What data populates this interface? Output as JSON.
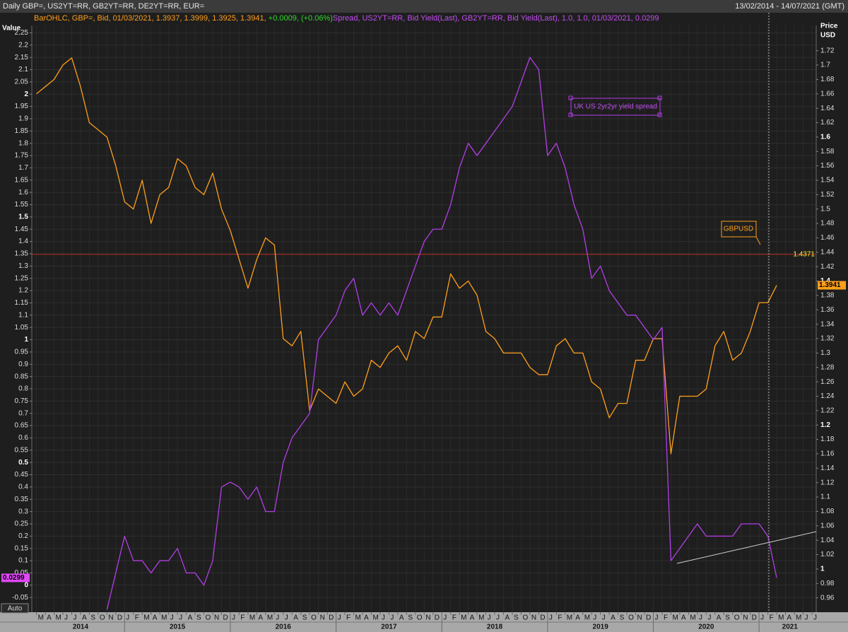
{
  "chart_data": {
    "type": "line",
    "header": "Daily GBP=, US2YT=RR, GB2YT=RR, DE2YT=RR, EUR=",
    "date_range": "13/02/2014 - 14/07/2021 (GMT)",
    "legend_text": [
      "BarOHLC, GBP=, Bid, 01/03/2021, 1.3937, 1.3999, 1.3925, 1.3941, ",
      "+0.0009, (+0.06%)",
      "Spread, US2YT=RR, Bid Yield(Last), GB2YT=RR, Bid Yield(Last),  1.0, 1.0, 01/03/2021, 0.0299"
    ],
    "legend_colors": [
      "#ff9f1c",
      "#2bd92b",
      "#c14ef0"
    ],
    "y_label": "Value",
    "y2_label": [
      "Price",
      "USD"
    ],
    "auto_button": "Auto",
    "grid": true,
    "ylim": [
      -0.11,
      2.28
    ],
    "yticks": [
      2.25,
      2.2,
      2.15,
      2.1,
      2.05,
      2,
      1.95,
      1.9,
      1.85,
      1.8,
      1.75,
      1.7,
      1.65,
      1.6,
      1.55,
      1.5,
      1.45,
      1.4,
      1.35,
      1.3,
      1.25,
      1.2,
      1.15,
      1.1,
      1.05,
      1,
      0.95,
      0.9,
      0.85,
      0.8,
      0.75,
      0.7,
      0.65,
      0.6,
      0.55,
      0.5,
      0.45,
      0.4,
      0.35,
      0.3,
      0.25,
      0.2,
      0.15,
      0.1,
      0.05,
      0,
      -0.05
    ],
    "y2lim": [
      0.94,
      1.755
    ],
    "y2ticks": [
      1.72,
      1.7,
      1.68,
      1.66,
      1.64,
      1.62,
      1.6,
      1.58,
      1.56,
      1.54,
      1.52,
      1.5,
      1.48,
      1.46,
      1.44,
      1.42,
      1.4,
      1.38,
      1.36,
      1.34,
      1.32,
      1.3,
      1.28,
      1.26,
      1.24,
      1.22,
      1.2,
      1.18,
      1.16,
      1.14,
      1.12,
      1.1,
      1.08,
      1.06,
      1.04,
      1.02,
      1,
      0.98,
      0.96
    ],
    "xticks": [
      {
        "value": "2014-03",
        "label": "M"
      },
      {
        "value": "2014-04",
        "label": "A"
      },
      {
        "value": "2014-05",
        "label": "M"
      },
      {
        "value": "2014-06",
        "label": "J"
      },
      {
        "value": "2014-07",
        "label": "J"
      },
      {
        "value": "2014-08",
        "label": "A"
      },
      {
        "value": "2014-09",
        "label": "S"
      },
      {
        "value": "2014-10",
        "label": "O"
      },
      {
        "value": "2014-11",
        "label": "N"
      },
      {
        "value": "2014-12",
        "label": "D"
      },
      {
        "value": "2015-01",
        "label": "J"
      },
      {
        "value": "2015-02",
        "label": "F"
      },
      {
        "value": "2015-03",
        "label": "M"
      },
      {
        "value": "2015-04",
        "label": "A"
      },
      {
        "value": "2015-05",
        "label": "M"
      },
      {
        "value": "2015-06",
        "label": "J"
      },
      {
        "value": "2015-07",
        "label": "J"
      },
      {
        "value": "2015-08",
        "label": "A"
      },
      {
        "value": "2015-09",
        "label": "S"
      },
      {
        "value": "2015-10",
        "label": "O"
      },
      {
        "value": "2015-11",
        "label": "N"
      },
      {
        "value": "2015-12",
        "label": "D"
      },
      {
        "value": "2016-01",
        "label": "J"
      },
      {
        "value": "2016-02",
        "label": "F"
      },
      {
        "value": "2016-03",
        "label": "M"
      },
      {
        "value": "2016-04",
        "label": "A"
      },
      {
        "value": "2016-05",
        "label": "M"
      },
      {
        "value": "2016-06",
        "label": "J"
      },
      {
        "value": "2016-07",
        "label": "J"
      },
      {
        "value": "2016-08",
        "label": "A"
      },
      {
        "value": "2016-09",
        "label": "S"
      },
      {
        "value": "2016-10",
        "label": "O"
      },
      {
        "value": "2016-11",
        "label": "N"
      },
      {
        "value": "2016-12",
        "label": "D"
      },
      {
        "value": "2017-01",
        "label": "J"
      },
      {
        "value": "2017-02",
        "label": "F"
      },
      {
        "value": "2017-03",
        "label": "M"
      },
      {
        "value": "2017-04",
        "label": "A"
      },
      {
        "value": "2017-05",
        "label": "M"
      },
      {
        "value": "2017-06",
        "label": "J"
      },
      {
        "value": "2017-07",
        "label": "J"
      },
      {
        "value": "2017-08",
        "label": "A"
      },
      {
        "value": "2017-09",
        "label": "S"
      },
      {
        "value": "2017-10",
        "label": "O"
      },
      {
        "value": "2017-11",
        "label": "N"
      },
      {
        "value": "2017-12",
        "label": "D"
      },
      {
        "value": "2018-01",
        "label": "J"
      },
      {
        "value": "2018-02",
        "label": "F"
      },
      {
        "value": "2018-03",
        "label": "M"
      },
      {
        "value": "2018-04",
        "label": "A"
      },
      {
        "value": "2018-05",
        "label": "M"
      },
      {
        "value": "2018-06",
        "label": "J"
      },
      {
        "value": "2018-07",
        "label": "J"
      },
      {
        "value": "2018-08",
        "label": "A"
      },
      {
        "value": "2018-09",
        "label": "S"
      },
      {
        "value": "2018-10",
        "label": "O"
      },
      {
        "value": "2018-11",
        "label": "N"
      },
      {
        "value": "2018-12",
        "label": "D"
      },
      {
        "value": "2019-01",
        "label": "J"
      },
      {
        "value": "2019-02",
        "label": "F"
      },
      {
        "value": "2019-03",
        "label": "M"
      },
      {
        "value": "2019-04",
        "label": "A"
      },
      {
        "value": "2019-05",
        "label": "M"
      },
      {
        "value": "2019-06",
        "label": "J"
      },
      {
        "value": "2019-07",
        "label": "J"
      },
      {
        "value": "2019-08",
        "label": "A"
      },
      {
        "value": "2019-09",
        "label": "S"
      },
      {
        "value": "2019-10",
        "label": "O"
      },
      {
        "value": "2019-11",
        "label": "N"
      },
      {
        "value": "2019-12",
        "label": "D"
      },
      {
        "value": "2020-01",
        "label": "J"
      },
      {
        "value": "2020-02",
        "label": "F"
      },
      {
        "value": "2020-03",
        "label": "M"
      },
      {
        "value": "2020-04",
        "label": "A"
      },
      {
        "value": "2020-05",
        "label": "M"
      },
      {
        "value": "2020-06",
        "label": "J"
      },
      {
        "value": "2020-07",
        "label": "J"
      },
      {
        "value": "2020-08",
        "label": "A"
      },
      {
        "value": "2020-09",
        "label": "S"
      },
      {
        "value": "2020-10",
        "label": "O"
      },
      {
        "value": "2020-11",
        "label": "N"
      },
      {
        "value": "2020-12",
        "label": "D"
      },
      {
        "value": "2021-01",
        "label": "J"
      },
      {
        "value": "2021-02",
        "label": "F"
      },
      {
        "value": "2021-03",
        "label": "M"
      },
      {
        "value": "2021-04",
        "label": "A"
      },
      {
        "value": "2021-05",
        "label": "M"
      },
      {
        "value": "2021-06",
        "label": "J"
      },
      {
        "value": "2021-07",
        "label": "J"
      }
    ],
    "years": [
      "2014",
      "2015",
      "2016",
      "2017",
      "2018",
      "2019",
      "2020",
      "2021"
    ],
    "x": [
      "2014-03",
      "2014-04",
      "2014-05",
      "2014-06",
      "2014-07",
      "2014-08",
      "2014-09",
      "2014-10",
      "2014-11",
      "2014-12",
      "2015-01",
      "2015-02",
      "2015-03",
      "2015-04",
      "2015-05",
      "2015-06",
      "2015-07",
      "2015-08",
      "2015-09",
      "2015-10",
      "2015-11",
      "2015-12",
      "2016-01",
      "2016-02",
      "2016-03",
      "2016-04",
      "2016-05",
      "2016-06",
      "2016-07",
      "2016-08",
      "2016-09",
      "2016-10",
      "2016-11",
      "2016-12",
      "2017-01",
      "2017-02",
      "2017-03",
      "2017-04",
      "2017-05",
      "2017-06",
      "2017-07",
      "2017-08",
      "2017-09",
      "2017-10",
      "2017-11",
      "2017-12",
      "2018-01",
      "2018-02",
      "2018-03",
      "2018-04",
      "2018-05",
      "2018-06",
      "2018-07",
      "2018-08",
      "2018-09",
      "2018-10",
      "2018-11",
      "2018-12",
      "2019-01",
      "2019-02",
      "2019-03",
      "2019-04",
      "2019-05",
      "2019-06",
      "2019-07",
      "2019-08",
      "2019-09",
      "2019-10",
      "2019-11",
      "2019-12",
      "2020-01",
      "2020-02",
      "2020-03",
      "2020-04",
      "2020-05",
      "2020-06",
      "2020-07",
      "2020-08",
      "2020-09",
      "2020-10",
      "2020-11",
      "2020-12",
      "2021-01",
      "2021-02",
      "2021-03"
    ],
    "series": [
      {
        "name": "GBPUSD",
        "color": "#ff9f1c",
        "axis": "y2",
        "values": [
          1.66,
          1.67,
          1.68,
          1.7,
          1.71,
          1.67,
          1.62,
          1.61,
          1.6,
          1.56,
          1.51,
          1.5,
          1.54,
          1.48,
          1.52,
          1.53,
          1.57,
          1.56,
          1.53,
          1.52,
          1.55,
          1.5,
          1.47,
          1.43,
          1.39,
          1.43,
          1.46,
          1.45,
          1.32,
          1.31,
          1.33,
          1.22,
          1.25,
          1.24,
          1.23,
          1.26,
          1.24,
          1.25,
          1.29,
          1.28,
          1.3,
          1.31,
          1.29,
          1.33,
          1.32,
          1.35,
          1.35,
          1.41,
          1.39,
          1.4,
          1.38,
          1.33,
          1.32,
          1.3,
          1.3,
          1.3,
          1.28,
          1.27,
          1.27,
          1.31,
          1.32,
          1.3,
          1.3,
          1.26,
          1.25,
          1.21,
          1.23,
          1.23,
          1.29,
          1.29,
          1.32,
          1.32,
          1.16,
          1.24,
          1.24,
          1.24,
          1.25,
          1.31,
          1.33,
          1.29,
          1.3,
          1.33,
          1.37,
          1.37,
          1.3941
        ]
      },
      {
        "name": "UK US 2yr2yr yield spread",
        "color": "#b23fe6",
        "axis": "y",
        "values": [
          null,
          null,
          null,
          null,
          null,
          null,
          null,
          null,
          -0.1,
          0.05,
          0.2,
          0.1,
          0.1,
          0.05,
          0.1,
          0.1,
          0.15,
          0.05,
          0.05,
          0.0,
          0.1,
          0.4,
          0.42,
          0.4,
          0.35,
          0.4,
          0.3,
          0.3,
          0.5,
          0.6,
          0.65,
          0.7,
          1.0,
          1.05,
          1.1,
          1.2,
          1.25,
          1.1,
          1.15,
          1.1,
          1.15,
          1.1,
          1.2,
          1.3,
          1.4,
          1.45,
          1.45,
          1.55,
          1.7,
          1.8,
          1.75,
          1.8,
          1.85,
          1.9,
          1.95,
          2.05,
          2.15,
          2.1,
          1.75,
          1.8,
          1.7,
          1.55,
          1.45,
          1.25,
          1.3,
          1.2,
          1.15,
          1.1,
          1.1,
          1.05,
          1.0,
          1.05,
          0.1,
          0.15,
          0.2,
          0.25,
          0.2,
          0.2,
          0.2,
          0.2,
          0.25,
          0.25,
          0.25,
          0.2,
          0.0299
        ]
      }
    ],
    "reference_line": {
      "value": 1.4371,
      "axis": "y2",
      "color": "#b8281c",
      "label_color": "#f2f23a"
    }
  }
}
